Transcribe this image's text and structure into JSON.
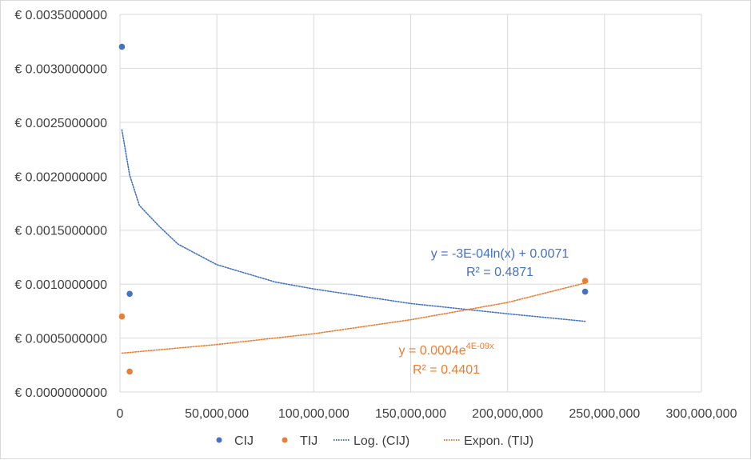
{
  "chart_data": {
    "type": "scatter",
    "title": "",
    "xlabel": "",
    "ylabel": "",
    "xlim": [
      0,
      300000000
    ],
    "ylim": [
      0,
      0.0035
    ],
    "grid": true,
    "legend_position": "bottom",
    "x_ticks": [
      {
        "value": 0,
        "label": "0"
      },
      {
        "value": 50000000,
        "label": "50,000,000"
      },
      {
        "value": 100000000,
        "label": "100,000,000"
      },
      {
        "value": 150000000,
        "label": "150,000,000"
      },
      {
        "value": 200000000,
        "label": "200,000,000"
      },
      {
        "value": 250000000,
        "label": "250,000,000"
      },
      {
        "value": 300000000,
        "label": "300,000,000"
      }
    ],
    "y_ticks": [
      {
        "value": 0,
        "label": "€ 0.0000000000"
      },
      {
        "value": 0.0005,
        "label": "€ 0.0005000000"
      },
      {
        "value": 0.001,
        "label": "€ 0.0010000000"
      },
      {
        "value": 0.0015,
        "label": "€ 0.0015000000"
      },
      {
        "value": 0.002,
        "label": "€ 0.0020000000"
      },
      {
        "value": 0.0025,
        "label": "€ 0.0025000000"
      },
      {
        "value": 0.003,
        "label": "€ 0.0030000000"
      },
      {
        "value": 0.0035,
        "label": "€ 0.0035000000"
      }
    ],
    "series": [
      {
        "name": "CIJ",
        "color": "#4472c4",
        "points": [
          {
            "x": 1000000,
            "y": 0.0032
          },
          {
            "x": 5000000,
            "y": 0.00091
          },
          {
            "x": 240000000,
            "y": 0.00093
          }
        ]
      },
      {
        "name": "TIJ",
        "color": "#ed7d31",
        "points": [
          {
            "x": 1000000,
            "y": 0.0007
          },
          {
            "x": 5000000,
            "y": 0.00019
          },
          {
            "x": 240000000,
            "y": 0.00103
          }
        ]
      }
    ],
    "trendlines": [
      {
        "name": "Log. (CIJ)",
        "type": "logarithmic",
        "color": "#4472c4",
        "equation": "y = -3E-04ln(x) + 0.0071",
        "r2": "R² = 0.4871",
        "x_range": [
          1000000,
          240000000
        ],
        "curve": [
          {
            "x": 1000000,
            "y": 0.00243
          },
          {
            "x": 5000000,
            "y": 0.00201
          },
          {
            "x": 10000000,
            "y": 0.00173
          },
          {
            "x": 20000000,
            "y": 0.00154
          },
          {
            "x": 30000000,
            "y": 0.00137
          },
          {
            "x": 50000000,
            "y": 0.00118
          },
          {
            "x": 80000000,
            "y": 0.00102
          },
          {
            "x": 100000000,
            "y": 0.000955
          },
          {
            "x": 150000000,
            "y": 0.00082
          },
          {
            "x": 200000000,
            "y": 0.000725
          },
          {
            "x": 240000000,
            "y": 0.000655
          }
        ]
      },
      {
        "name": "Expon. (TIJ)",
        "type": "exponential",
        "color": "#ed7d31",
        "equation_base": "y = 0.0004e",
        "equation_exponent": "4E-09x",
        "r2": "R² = 0.4401",
        "x_range": [
          1000000,
          240000000
        ],
        "curve": [
          {
            "x": 1000000,
            "y": 0.00036
          },
          {
            "x": 50000000,
            "y": 0.00044
          },
          {
            "x": 100000000,
            "y": 0.00054
          },
          {
            "x": 150000000,
            "y": 0.00067
          },
          {
            "x": 200000000,
            "y": 0.00083
          },
          {
            "x": 240000000,
            "y": 0.00101
          }
        ]
      }
    ]
  },
  "legend": {
    "items": [
      {
        "label": "CIJ",
        "kind": "marker",
        "color": "#4472c4"
      },
      {
        "label": "TIJ",
        "kind": "marker",
        "color": "#ed7d31"
      },
      {
        "label": "Log. (CIJ)",
        "kind": "dotted-line",
        "color": "#4472c4"
      },
      {
        "label": "Expon. (TIJ)",
        "kind": "dotted-line",
        "color": "#ed7d31"
      }
    ]
  },
  "colors": {
    "grid": "#d9d9d9",
    "axis_text": "#404040",
    "border": "#d9d9d9"
  }
}
